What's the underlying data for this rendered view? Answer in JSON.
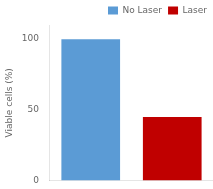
{
  "chart_data": {
    "type": "bar",
    "categories": [
      null,
      null
    ],
    "series": [
      {
        "name": "No Laser",
        "color": "#5B9BD5",
        "values": [
          100,
          null
        ]
      },
      {
        "name": "Laser",
        "color": "#C00000",
        "values": [
          null,
          45
        ]
      }
    ],
    "ylabel": "Viable cells (%)",
    "ylim": [
      0,
      110
    ],
    "yticks": [
      0,
      50,
      100
    ],
    "grid": false,
    "legend": "upper right",
    "tick_labels": "y"
  }
}
